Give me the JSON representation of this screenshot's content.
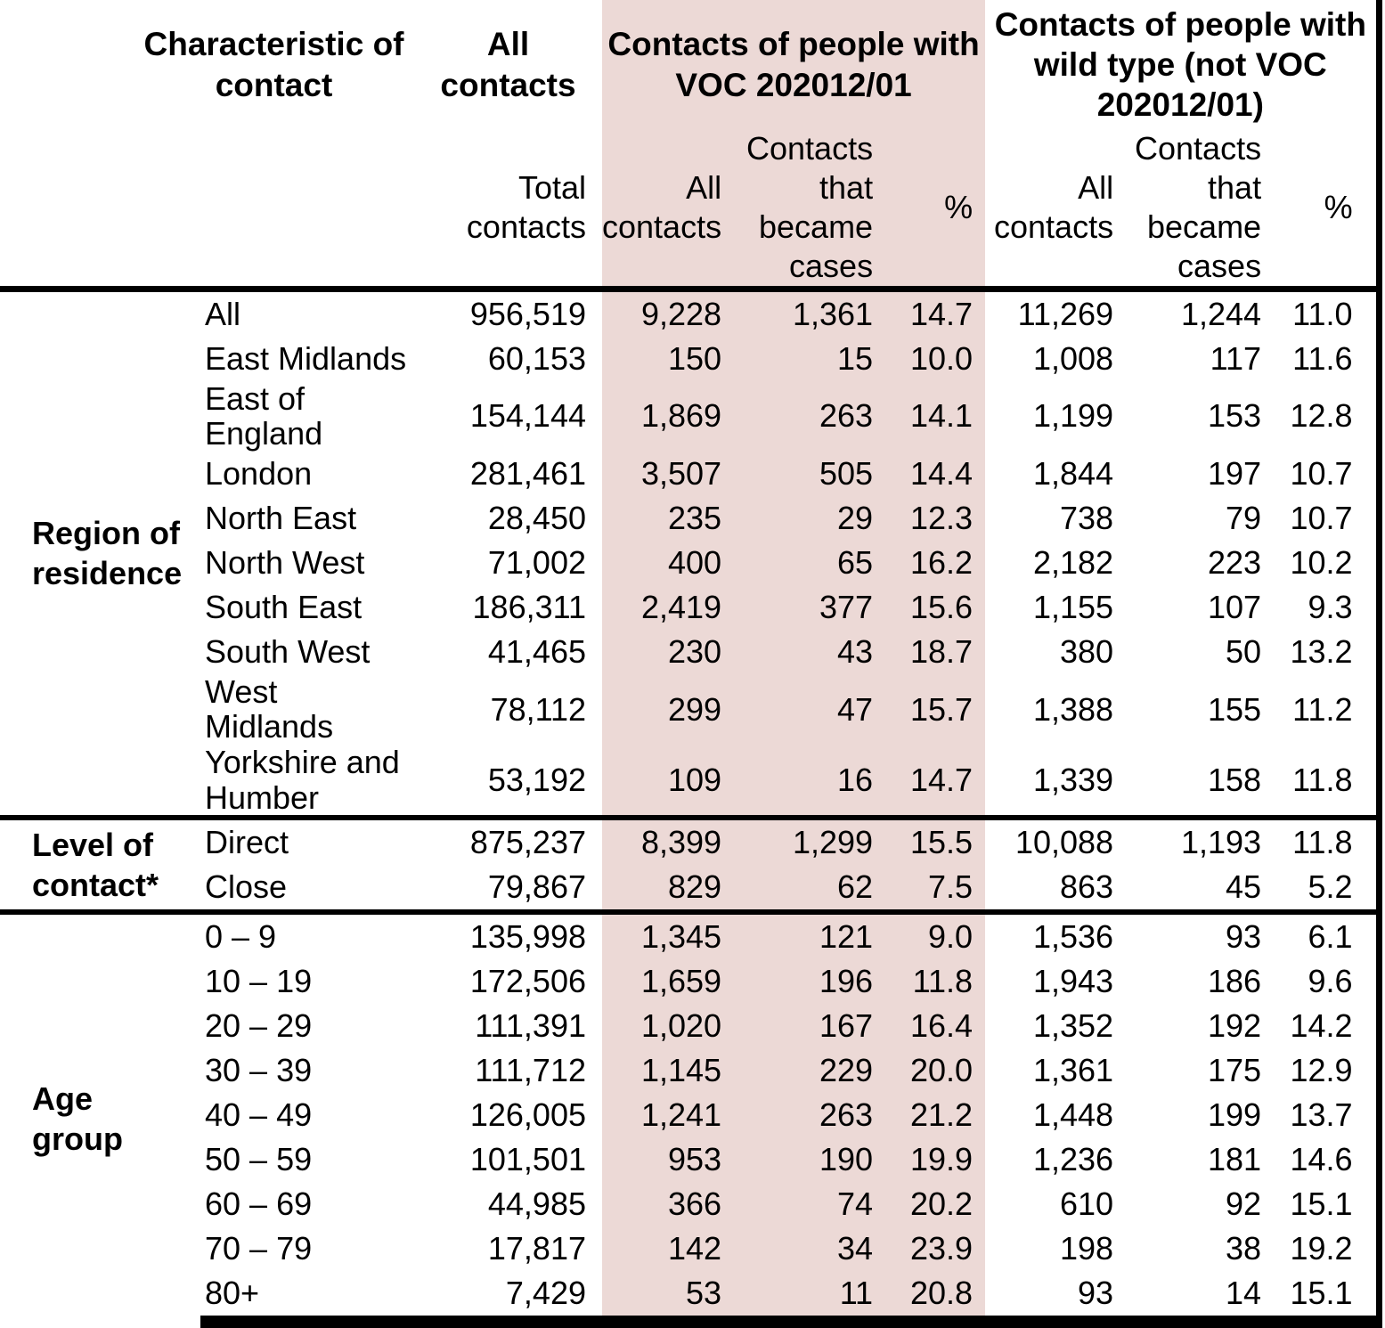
{
  "colors": {
    "voc_band": "#ecd9d6",
    "rule": "#000000"
  },
  "header": {
    "characteristic": "Characteristic of contact",
    "all_contacts_group": "All\ncontacts",
    "voc_group": "Contacts of people with\nVOC 202012/01",
    "wild_group": "Contacts of people with\nwild type (not VOC\n202012/01)",
    "sub": {
      "total_contacts": "Total\ncontacts",
      "all_contacts": "All\ncontacts",
      "became_cases": "Contacts\nthat\nbecame\ncases",
      "percent": "%"
    }
  },
  "sections": [
    {
      "label": "Region of\nresidence",
      "rows": [
        {
          "label": "All",
          "total": "956,519",
          "voc_all": "9,228",
          "voc_cases": "1,361",
          "voc_pct": "14.7",
          "wild_all": "11,269",
          "wild_cases": "1,244",
          "wild_pct": "11.0"
        },
        {
          "label": "East Midlands",
          "total": "60,153",
          "voc_all": "150",
          "voc_cases": "15",
          "voc_pct": "10.0",
          "wild_all": "1,008",
          "wild_cases": "117",
          "wild_pct": "11.6"
        },
        {
          "label": "East of England",
          "total": "154,144",
          "voc_all": "1,869",
          "voc_cases": "263",
          "voc_pct": "14.1",
          "wild_all": "1,199",
          "wild_cases": "153",
          "wild_pct": "12.8"
        },
        {
          "label": "London",
          "total": "281,461",
          "voc_all": "3,507",
          "voc_cases": "505",
          "voc_pct": "14.4",
          "wild_all": "1,844",
          "wild_cases": "197",
          "wild_pct": "10.7"
        },
        {
          "label": "North East",
          "total": "28,450",
          "voc_all": "235",
          "voc_cases": "29",
          "voc_pct": "12.3",
          "wild_all": "738",
          "wild_cases": "79",
          "wild_pct": "10.7"
        },
        {
          "label": "North West",
          "total": "71,002",
          "voc_all": "400",
          "voc_cases": "65",
          "voc_pct": "16.2",
          "wild_all": "2,182",
          "wild_cases": "223",
          "wild_pct": "10.2"
        },
        {
          "label": "South East",
          "total": "186,311",
          "voc_all": "2,419",
          "voc_cases": "377",
          "voc_pct": "15.6",
          "wild_all": "1,155",
          "wild_cases": "107",
          "wild_pct": "9.3"
        },
        {
          "label": "South West",
          "total": "41,465",
          "voc_all": "230",
          "voc_cases": "43",
          "voc_pct": "18.7",
          "wild_all": "380",
          "wild_cases": "50",
          "wild_pct": "13.2"
        },
        {
          "label": "West Midlands",
          "total": "78,112",
          "voc_all": "299",
          "voc_cases": "47",
          "voc_pct": "15.7",
          "wild_all": "1,388",
          "wild_cases": "155",
          "wild_pct": "11.2"
        },
        {
          "label": "Yorkshire and Humber",
          "total": "53,192",
          "voc_all": "109",
          "voc_cases": "16",
          "voc_pct": "14.7",
          "wild_all": "1,339",
          "wild_cases": "158",
          "wild_pct": "11.8"
        }
      ]
    },
    {
      "label": "Level of\ncontact*",
      "rows": [
        {
          "label": "Direct",
          "total": "875,237",
          "voc_all": "8,399",
          "voc_cases": "1,299",
          "voc_pct": "15.5",
          "wild_all": "10,088",
          "wild_cases": "1,193",
          "wild_pct": "11.8"
        },
        {
          "label": "Close",
          "total": "79,867",
          "voc_all": "829",
          "voc_cases": "62",
          "voc_pct": "7.5",
          "wild_all": "863",
          "wild_cases": "45",
          "wild_pct": "5.2"
        }
      ]
    },
    {
      "label": "Age\ngroup",
      "rows": [
        {
          "label": "0 – 9",
          "total": "135,998",
          "voc_all": "1,345",
          "voc_cases": "121",
          "voc_pct": "9.0",
          "wild_all": "1,536",
          "wild_cases": "93",
          "wild_pct": "6.1"
        },
        {
          "label": "10 – 19",
          "total": "172,506",
          "voc_all": "1,659",
          "voc_cases": "196",
          "voc_pct": "11.8",
          "wild_all": "1,943",
          "wild_cases": "186",
          "wild_pct": "9.6"
        },
        {
          "label": "20 – 29",
          "total": "111,391",
          "voc_all": "1,020",
          "voc_cases": "167",
          "voc_pct": "16.4",
          "wild_all": "1,352",
          "wild_cases": "192",
          "wild_pct": "14.2"
        },
        {
          "label": "30 – 39",
          "total": "111,712",
          "voc_all": "1,145",
          "voc_cases": "229",
          "voc_pct": "20.0",
          "wild_all": "1,361",
          "wild_cases": "175",
          "wild_pct": "12.9"
        },
        {
          "label": "40 – 49",
          "total": "126,005",
          "voc_all": "1,241",
          "voc_cases": "263",
          "voc_pct": "21.2",
          "wild_all": "1,448",
          "wild_cases": "199",
          "wild_pct": "13.7"
        },
        {
          "label": "50 – 59",
          "total": "101,501",
          "voc_all": "953",
          "voc_cases": "190",
          "voc_pct": "19.9",
          "wild_all": "1,236",
          "wild_cases": "181",
          "wild_pct": "14.6"
        },
        {
          "label": "60 – 69",
          "total": "44,985",
          "voc_all": "366",
          "voc_cases": "74",
          "voc_pct": "20.2",
          "wild_all": "610",
          "wild_cases": "92",
          "wild_pct": "15.1"
        },
        {
          "label": "70 – 79",
          "total": "17,817",
          "voc_all": "142",
          "voc_cases": "34",
          "voc_pct": "23.9",
          "wild_all": "198",
          "wild_cases": "38",
          "wild_pct": "19.2"
        },
        {
          "label": "80+",
          "total": "7,429",
          "voc_all": "53",
          "voc_cases": "11",
          "voc_pct": "20.8",
          "wild_all": "93",
          "wild_cases": "14",
          "wild_pct": "15.1"
        }
      ]
    }
  ]
}
